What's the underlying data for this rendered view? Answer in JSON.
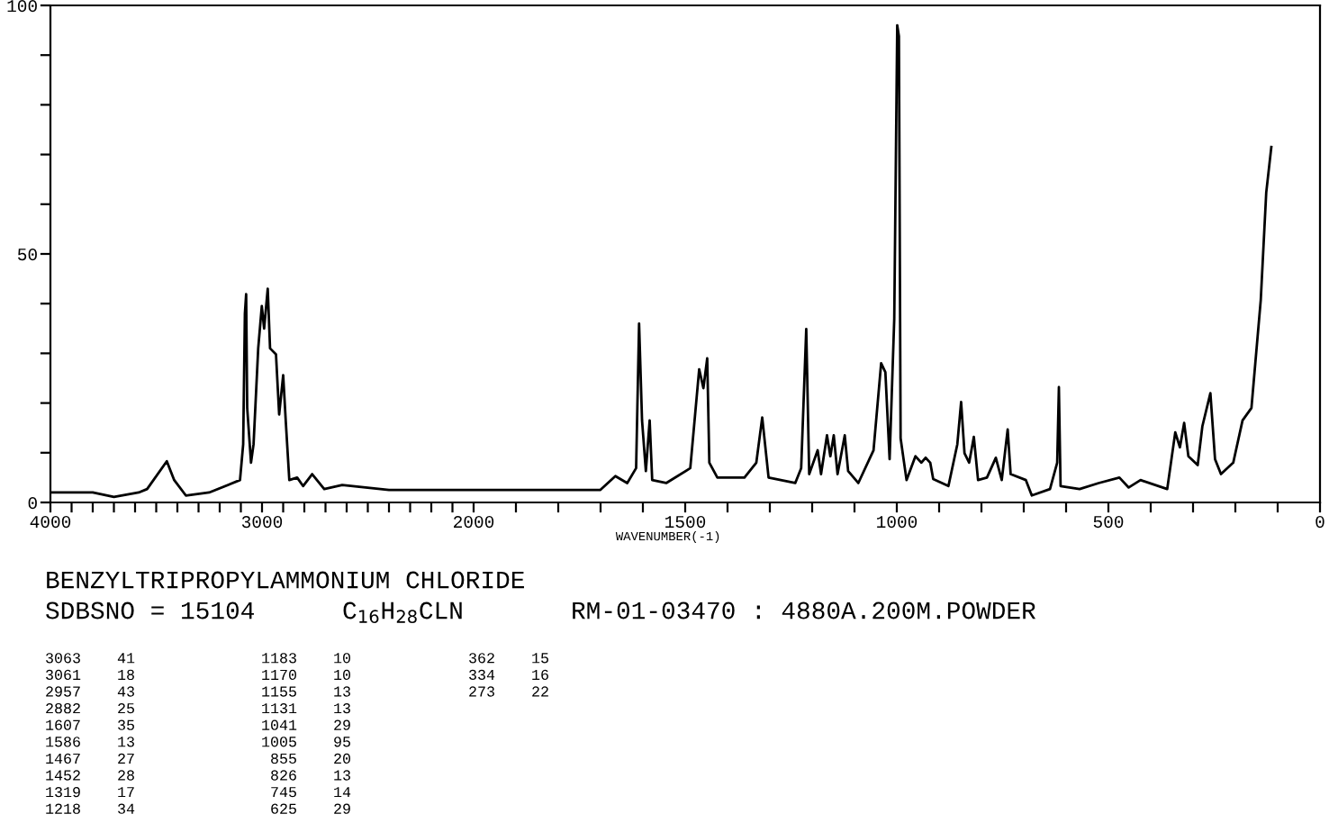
{
  "chart_data": [
    {
      "type": "line",
      "x": [
        4000,
        3800,
        3700,
        3583,
        3543,
        3450,
        3415,
        3360,
        3250,
        3104,
        3089,
        3081,
        3075,
        3070,
        3052,
        3040,
        3018,
        3001,
        2990,
        2973,
        2962,
        2934,
        2919,
        2900,
        2888,
        2871,
        2834,
        2806,
        2763,
        2706,
        2621,
        2400,
        2200,
        2000
      ],
      "series": [
        {
          "color": "#000000",
          "values": [
            2,
            2,
            1.1,
            2,
            2.7,
            8.3,
            4.5,
            1.4,
            2,
            4.5,
            11.7,
            38,
            41.9,
            19,
            8,
            11.7,
            31,
            39.5,
            35,
            43,
            31,
            29.8,
            17.7,
            25.6,
            16.5,
            4.5,
            5,
            3.3,
            5.7,
            2.7,
            3.5,
            2.5,
            2.5,
            2.5
          ]
        }
      ],
      "xlim": [
        4000,
        2000
      ],
      "ylim": [
        0,
        100
      ],
      "xticks": [
        4000,
        {
          "value": 3900,
          "label": null
        },
        {
          "value": 3800,
          "label": null
        },
        {
          "value": 3700,
          "label": null
        },
        {
          "value": 3600,
          "label": null
        },
        {
          "value": 3500,
          "label": null
        },
        {
          "value": 3400,
          "label": null
        },
        {
          "value": 3300,
          "label": null
        },
        {
          "value": 3200,
          "label": null
        },
        {
          "value": 3100,
          "label": null
        },
        3000,
        {
          "value": 2900,
          "label": null
        },
        {
          "value": 2800,
          "label": null
        },
        {
          "value": 2700,
          "label": null
        },
        {
          "value": 2600,
          "label": null
        },
        {
          "value": 2500,
          "label": null
        },
        {
          "value": 2400,
          "label": null
        },
        {
          "value": 2300,
          "label": null
        },
        {
          "value": 2200,
          "label": null
        },
        {
          "value": 2100,
          "label": null
        },
        2000
      ],
      "yticks": [
        0,
        {
          "value": 10,
          "label": null
        },
        {
          "value": 20,
          "label": null
        },
        {
          "value": 30,
          "label": null
        },
        {
          "value": 40,
          "label": null
        },
        50,
        {
          "value": 60,
          "label": null
        },
        {
          "value": 70,
          "label": null
        },
        {
          "value": 80,
          "label": null
        },
        {
          "value": 90,
          "label": null
        },
        100
      ],
      "grid": false,
      "marker": "none",
      "line_style": "solid",
      "annotations": [
        "BENZYLTRIPROPYLAMMONIUM CHLORIDE",
        "SDBSNO = 15104",
        "C$_{16}$H$_{28}$CLN",
        "RM-01-03470 : 4880A.200M.POWDER",
        "3063    41",
        "3061    18",
        "2957    43",
        "2882    25",
        "1607    35",
        "1586    13",
        "1467    27",
        "1452    28",
        "1319    17",
        "1218    34",
        "1183    10",
        "1170    10",
        "1155    13",
        "1131    13",
        "1041    29",
        "1005    95",
        " 855    20",
        " 826    13",
        " 745    14",
        " 625    29",
        " 362    15",
        " 334    16",
        " 273    22"
      ]
    },
    {
      "type": "line",
      "xlabel": "WAVENUMBER(-1)",
      "x": [
        2000,
        1850,
        1701,
        1665,
        1637,
        1616,
        1609,
        1602,
        1593,
        1584,
        1578,
        1545,
        1488,
        1467,
        1457,
        1448,
        1443,
        1424,
        1360,
        1332,
        1318,
        1303,
        1240,
        1226,
        1214,
        1207,
        1187,
        1179,
        1165,
        1157,
        1149,
        1140,
        1123,
        1115,
        1091,
        1055,
        1037,
        1027,
        1017,
        1006,
        999,
        995,
        991,
        977,
        956,
        942,
        932,
        921,
        914,
        878,
        857,
        848,
        840,
        829,
        818,
        808,
        787,
        766,
        752,
        738,
        731,
        695,
        681,
        638,
        621,
        617,
        613,
        568,
        523,
        474,
        452,
        424,
        361,
        342,
        331,
        321,
        311,
        289,
        278,
        259,
        248,
        234,
        205,
        183,
        162,
        140,
        127,
        115
      ],
      "series": [
        {
          "color": "#000000",
          "values": [
            2.5,
            2.5,
            2.5,
            5.3,
            3.9,
            6.9,
            36,
            16.5,
            6.3,
            16.5,
            4.5,
            3.9,
            6.9,
            26.8,
            23,
            29,
            8,
            5,
            5,
            8,
            17.1,
            5,
            3.9,
            6.9,
            34.9,
            5.7,
            10.5,
            5.7,
            13.5,
            9.3,
            13.5,
            5.7,
            13.5,
            6.3,
            3.9,
            10.5,
            28,
            26.2,
            8.7,
            37,
            96,
            93.8,
            12.9,
            4.5,
            9.3,
            8,
            9,
            8,
            4.7,
            3.3,
            11.7,
            20.2,
            9.9,
            8,
            13.2,
            4.5,
            5,
            9,
            4.5,
            14.7,
            5.7,
            4.5,
            1.4,
            2.7,
            8,
            23.2,
            3.3,
            2.7,
            3.9,
            5,
            3,
            4.5,
            2.7,
            14.1,
            11.1,
            16,
            9.3,
            7.5,
            15.3,
            22,
            8.7,
            5.7,
            8,
            16.5,
            19,
            40.7,
            62.4,
            71.5
          ]
        }
      ],
      "xlim": [
        2000,
        0
      ],
      "ylim": [
        0,
        100
      ],
      "xticks": [
        {
          "value": 1900,
          "label": null
        },
        {
          "value": 1800,
          "label": null
        },
        {
          "value": 1700,
          "label": null
        },
        {
          "value": 1600,
          "label": null
        },
        1500,
        {
          "value": 1400,
          "label": null
        },
        {
          "value": 1300,
          "label": null
        },
        {
          "value": 1200,
          "label": null
        },
        {
          "value": 1100,
          "label": null
        },
        1000,
        {
          "value": 900,
          "label": null
        },
        {
          "value": 800,
          "label": null
        },
        {
          "value": 700,
          "label": null
        },
        {
          "value": 600,
          "label": null
        },
        500,
        {
          "value": 400,
          "label": null
        },
        {
          "value": 300,
          "label": null
        },
        {
          "value": 200,
          "label": null
        },
        {
          "value": 100,
          "label": null
        },
        0
      ],
      "tick_labels": "x",
      "grid": false,
      "marker": "none",
      "line_style": "solid"
    }
  ]
}
